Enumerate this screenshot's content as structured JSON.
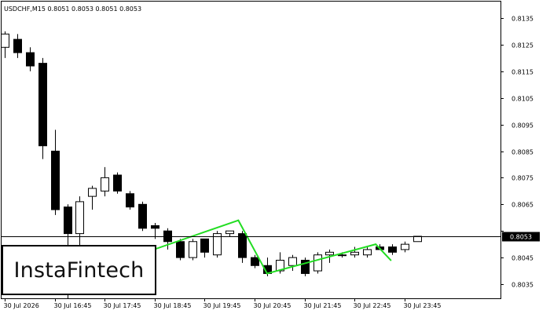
{
  "chart_data": {
    "type": "candlestick",
    "title": "USDCHF,M15  0.8051 0.8053 0.8051 0.8053",
    "symbol": "USDCHF,M15",
    "ylim": [
      0.8031,
      0.8138
    ],
    "y_ticks": [
      0.8135,
      0.8125,
      0.8115,
      0.8105,
      0.8095,
      0.8085,
      0.8075,
      0.8065,
      0.8055,
      0.8045,
      0.8035
    ],
    "y_tick_labels": [
      "0.8135",
      "0.8125",
      "0.8115",
      "0.8105",
      "0.8095",
      "0.8085",
      "0.8075",
      "0.8065",
      "0.8055",
      "0.8045",
      "0.8035"
    ],
    "x_tick_labels": [
      "30 Jul 2026",
      "30 Jul 16:45",
      "30 Jul 17:45",
      "30 Jul 18:45",
      "30 Jul 19:45",
      "30 Jul 20:45",
      "30 Jul 21:45",
      "30 Jul 22:45",
      "30 Jul 23:45"
    ],
    "x_tick_indices": [
      0,
      4,
      8,
      12,
      16,
      20,
      24,
      28,
      32
    ],
    "current_price": 0.8053,
    "current_price_label": "0.8053",
    "grid": false,
    "colors": {
      "bull_body": "#ffffff",
      "bear_body": "#000000",
      "outline": "#000000",
      "pattern_line": "#22dd22"
    },
    "candles": [
      {
        "o": 0.8124,
        "h": 0.813,
        "l": 0.812,
        "c": 0.8129
      },
      {
        "o": 0.8127,
        "h": 0.8129,
        "l": 0.812,
        "c": 0.8122
      },
      {
        "o": 0.8122,
        "h": 0.8124,
        "l": 0.8115,
        "c": 0.8117
      },
      {
        "o": 0.8118,
        "h": 0.812,
        "l": 0.8082,
        "c": 0.8087
      },
      {
        "o": 0.8085,
        "h": 0.8093,
        "l": 0.8061,
        "c": 0.8063
      },
      {
        "o": 0.8064,
        "h": 0.8065,
        "l": 0.8028,
        "c": 0.8054
      },
      {
        "o": 0.8054,
        "h": 0.8068,
        "l": 0.8049,
        "c": 0.8066
      },
      {
        "o": 0.8068,
        "h": 0.8072,
        "l": 0.8063,
        "c": 0.8071
      },
      {
        "o": 0.807,
        "h": 0.8079,
        "l": 0.8068,
        "c": 0.8075
      },
      {
        "o": 0.8076,
        "h": 0.8077,
        "l": 0.8069,
        "c": 0.807
      },
      {
        "o": 0.8069,
        "h": 0.807,
        "l": 0.8063,
        "c": 0.8064
      },
      {
        "o": 0.8065,
        "h": 0.8066,
        "l": 0.8055,
        "c": 0.8056
      },
      {
        "o": 0.8057,
        "h": 0.8058,
        "l": 0.8052,
        "c": 0.8056
      },
      {
        "o": 0.8055,
        "h": 0.8056,
        "l": 0.8048,
        "c": 0.8051
      },
      {
        "o": 0.8051,
        "h": 0.8052,
        "l": 0.8044,
        "c": 0.8045
      },
      {
        "o": 0.8045,
        "h": 0.8052,
        "l": 0.8044,
        "c": 0.8051
      },
      {
        "o": 0.8052,
        "h": 0.8052,
        "l": 0.8045,
        "c": 0.8047
      },
      {
        "o": 0.8046,
        "h": 0.8055,
        "l": 0.8045,
        "c": 0.8054
      },
      {
        "o": 0.8054,
        "h": 0.8055,
        "l": 0.8053,
        "c": 0.8055
      },
      {
        "o": 0.8054,
        "h": 0.8055,
        "l": 0.8043,
        "c": 0.8045
      },
      {
        "o": 0.8045,
        "h": 0.8046,
        "l": 0.8041,
        "c": 0.8042
      },
      {
        "o": 0.8042,
        "h": 0.8045,
        "l": 0.8038,
        "c": 0.8039
      },
      {
        "o": 0.804,
        "h": 0.8047,
        "l": 0.8039,
        "c": 0.8044
      },
      {
        "o": 0.8042,
        "h": 0.8046,
        "l": 0.804,
        "c": 0.8045
      },
      {
        "o": 0.8044,
        "h": 0.8045,
        "l": 0.8038,
        "c": 0.8039
      },
      {
        "o": 0.804,
        "h": 0.8047,
        "l": 0.8039,
        "c": 0.8046
      },
      {
        "o": 0.8046,
        "h": 0.8048,
        "l": 0.8043,
        "c": 0.8047
      },
      {
        "o": 0.8046,
        "h": 0.8047,
        "l": 0.8045,
        "c": 0.8046
      },
      {
        "o": 0.8046,
        "h": 0.8049,
        "l": 0.8045,
        "c": 0.8047
      },
      {
        "o": 0.8046,
        "h": 0.8049,
        "l": 0.8045,
        "c": 0.8048
      },
      {
        "o": 0.8049,
        "h": 0.805,
        "l": 0.8048,
        "c": 0.8048
      },
      {
        "o": 0.8049,
        "h": 0.805,
        "l": 0.8046,
        "c": 0.8047
      },
      {
        "o": 0.8048,
        "h": 0.8051,
        "l": 0.8047,
        "c": 0.805
      },
      {
        "o": 0.8051,
        "h": 0.8053,
        "l": 0.8051,
        "c": 0.8053
      }
    ],
    "pattern_lines": [
      {
        "from": {
          "i": 7.0,
          "price": 0.804
        },
        "to": {
          "i": 18.7,
          "price": 0.8059
        }
      },
      {
        "from": {
          "i": 18.7,
          "price": 0.8059
        },
        "to": {
          "i": 21.0,
          "price": 0.8039
        }
      },
      {
        "from": {
          "i": 21.0,
          "price": 0.8039
        },
        "to": {
          "i": 29.7,
          "price": 0.805
        }
      },
      {
        "from": {
          "i": 29.7,
          "price": 0.805
        },
        "to": {
          "i": 30.9,
          "price": 0.8044
        }
      }
    ]
  },
  "logo": {
    "text": "InstaFintech"
  }
}
